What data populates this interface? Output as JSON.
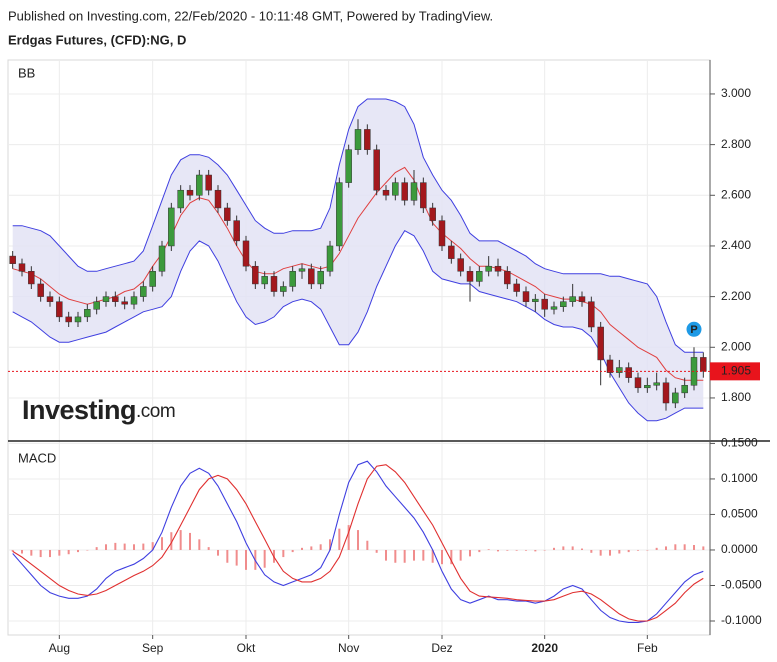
{
  "chart_data": {
    "type": "candlestick",
    "published": "Published on Investing.com, 22/Feb/2020 - 10:11:48 GMT, Powered by TradingView.",
    "title": "Erdgas Futures, (CFD):NG, D",
    "price_panel_label": "BB",
    "macd_panel_label": "MACD",
    "logo": "Investing",
    "logo_suffix": ".com",
    "marker_label": "P",
    "up_color": "#3c9a3c",
    "down_color": "#a3181d",
    "band_color": "#3f3fe0",
    "band_fill": "#e3e3f4",
    "middle_color": "#e04040",
    "macd_color": "#3f3fe0",
    "signal_color": "#e03030",
    "histogram_color": "#f08c8c",
    "last_color": "#e8141c",
    "categories": [
      null,
      null,
      null,
      null,
      null,
      "Aug",
      null,
      null,
      null,
      null,
      null,
      null,
      null,
      null,
      null,
      "Sep",
      null,
      null,
      null,
      null,
      null,
      null,
      null,
      null,
      null,
      "Okt",
      null,
      null,
      null,
      null,
      null,
      null,
      null,
      null,
      null,
      null,
      "Nov",
      null,
      null,
      null,
      null,
      null,
      null,
      null,
      null,
      null,
      "Dez",
      null,
      null,
      null,
      null,
      null,
      null,
      null,
      null,
      null,
      null,
      "2020",
      null,
      null,
      null,
      null,
      null,
      null,
      null,
      null,
      null,
      null,
      "Feb",
      null,
      null,
      null,
      null,
      null,
      null
    ],
    "ohlc": [
      [
        2.36,
        2.38,
        2.31,
        2.33
      ],
      [
        2.33,
        2.35,
        2.28,
        2.3
      ],
      [
        2.3,
        2.32,
        2.23,
        2.25
      ],
      [
        2.25,
        2.27,
        2.18,
        2.2
      ],
      [
        2.2,
        2.22,
        2.16,
        2.18
      ],
      [
        2.18,
        2.2,
        2.1,
        2.12
      ],
      [
        2.12,
        2.14,
        2.08,
        2.1
      ],
      [
        2.1,
        2.14,
        2.08,
        2.12
      ],
      [
        2.12,
        2.17,
        2.1,
        2.15
      ],
      [
        2.15,
        2.2,
        2.13,
        2.18
      ],
      [
        2.18,
        2.22,
        2.16,
        2.2
      ],
      [
        2.2,
        2.22,
        2.16,
        2.18
      ],
      [
        2.18,
        2.2,
        2.15,
        2.17
      ],
      [
        2.17,
        2.22,
        2.15,
        2.2
      ],
      [
        2.2,
        2.26,
        2.18,
        2.24
      ],
      [
        2.24,
        2.32,
        2.22,
        2.3
      ],
      [
        2.3,
        2.42,
        2.28,
        2.4
      ],
      [
        2.4,
        2.57,
        2.38,
        2.55
      ],
      [
        2.55,
        2.64,
        2.53,
        2.62
      ],
      [
        2.62,
        2.64,
        2.58,
        2.6
      ],
      [
        2.6,
        2.7,
        2.58,
        2.68
      ],
      [
        2.68,
        2.7,
        2.6,
        2.62
      ],
      [
        2.62,
        2.64,
        2.53,
        2.55
      ],
      [
        2.55,
        2.57,
        2.48,
        2.5
      ],
      [
        2.5,
        2.52,
        2.4,
        2.42
      ],
      [
        2.42,
        2.44,
        2.3,
        2.32
      ],
      [
        2.32,
        2.34,
        2.23,
        2.25
      ],
      [
        2.25,
        2.3,
        2.23,
        2.28
      ],
      [
        2.28,
        2.3,
        2.2,
        2.22
      ],
      [
        2.22,
        2.26,
        2.2,
        2.24
      ],
      [
        2.24,
        2.32,
        2.22,
        2.3
      ],
      [
        2.3,
        2.33,
        2.27,
        2.31
      ],
      [
        2.31,
        2.33,
        2.23,
        2.25
      ],
      [
        2.25,
        2.32,
        2.23,
        2.3
      ],
      [
        2.3,
        2.42,
        2.28,
        2.4
      ],
      [
        2.4,
        2.67,
        2.38,
        2.65
      ],
      [
        2.65,
        2.8,
        2.63,
        2.78
      ],
      [
        2.78,
        2.9,
        2.76,
        2.86
      ],
      [
        2.86,
        2.88,
        2.76,
        2.78
      ],
      [
        2.78,
        2.8,
        2.6,
        2.62
      ],
      [
        2.62,
        2.64,
        2.58,
        2.6
      ],
      [
        2.6,
        2.67,
        2.58,
        2.65
      ],
      [
        2.65,
        2.67,
        2.56,
        2.58
      ],
      [
        2.58,
        2.7,
        2.56,
        2.65
      ],
      [
        2.65,
        2.67,
        2.53,
        2.55
      ],
      [
        2.55,
        2.57,
        2.48,
        2.5
      ],
      [
        2.5,
        2.52,
        2.38,
        2.4
      ],
      [
        2.4,
        2.42,
        2.33,
        2.35
      ],
      [
        2.35,
        2.37,
        2.28,
        2.3
      ],
      [
        2.3,
        2.32,
        2.18,
        2.26
      ],
      [
        2.26,
        2.32,
        2.24,
        2.3
      ],
      [
        2.3,
        2.36,
        2.28,
        2.32
      ],
      [
        2.32,
        2.35,
        2.28,
        2.3
      ],
      [
        2.3,
        2.32,
        2.23,
        2.25
      ],
      [
        2.25,
        2.27,
        2.2,
        2.22
      ],
      [
        2.22,
        2.24,
        2.16,
        2.18
      ],
      [
        2.18,
        2.21,
        2.14,
        2.19
      ],
      [
        2.19,
        2.21,
        2.12,
        2.15
      ],
      [
        2.15,
        2.18,
        2.13,
        2.16
      ],
      [
        2.16,
        2.2,
        2.14,
        2.18
      ],
      [
        2.18,
        2.25,
        2.16,
        2.2
      ],
      [
        2.2,
        2.22,
        2.16,
        2.18
      ],
      [
        2.18,
        2.2,
        2.06,
        2.08
      ],
      [
        2.08,
        2.1,
        1.85,
        1.95
      ],
      [
        1.95,
        1.97,
        1.88,
        1.9
      ],
      [
        1.9,
        1.95,
        1.88,
        1.92
      ],
      [
        1.92,
        1.94,
        1.86,
        1.88
      ],
      [
        1.88,
        1.9,
        1.82,
        1.84
      ],
      [
        1.84,
        1.88,
        1.82,
        1.85
      ],
      [
        1.85,
        1.9,
        1.83,
        1.86
      ],
      [
        1.86,
        1.88,
        1.75,
        1.78
      ],
      [
        1.78,
        1.84,
        1.76,
        1.82
      ],
      [
        1.82,
        1.88,
        1.8,
        1.85
      ],
      [
        1.85,
        2.0,
        1.83,
        1.96
      ],
      [
        1.96,
        1.98,
        1.88,
        1.905
      ]
    ],
    "bb_upper": [
      2.48,
      2.48,
      2.47,
      2.46,
      2.44,
      2.4,
      2.36,
      2.32,
      2.3,
      2.3,
      2.31,
      2.32,
      2.33,
      2.34,
      2.38,
      2.48,
      2.58,
      2.68,
      2.74,
      2.76,
      2.76,
      2.75,
      2.72,
      2.68,
      2.62,
      2.56,
      2.5,
      2.47,
      2.45,
      2.45,
      2.46,
      2.46,
      2.46,
      2.47,
      2.55,
      2.72,
      2.86,
      2.95,
      2.98,
      2.98,
      2.98,
      2.97,
      2.95,
      2.88,
      2.75,
      2.68,
      2.62,
      2.58,
      2.52,
      2.45,
      2.42,
      2.42,
      2.42,
      2.4,
      2.38,
      2.36,
      2.33,
      2.31,
      2.3,
      2.29,
      2.29,
      2.29,
      2.29,
      2.29,
      2.28,
      2.28,
      2.27,
      2.26,
      2.25,
      2.2,
      2.1,
      2.01,
      1.98,
      1.98,
      1.98
    ],
    "bb_middle": [
      2.31,
      2.3,
      2.29,
      2.27,
      2.24,
      2.21,
      2.19,
      2.18,
      2.17,
      2.18,
      2.19,
      2.2,
      2.22,
      2.23,
      2.26,
      2.32,
      2.37,
      2.44,
      2.52,
      2.57,
      2.59,
      2.58,
      2.53,
      2.47,
      2.4,
      2.34,
      2.3,
      2.29,
      2.29,
      2.31,
      2.32,
      2.33,
      2.32,
      2.31,
      2.32,
      2.37,
      2.44,
      2.51,
      2.56,
      2.61,
      2.65,
      2.69,
      2.71,
      2.66,
      2.57,
      2.49,
      2.45,
      2.42,
      2.39,
      2.35,
      2.32,
      2.32,
      2.31,
      2.3,
      2.28,
      2.26,
      2.24,
      2.21,
      2.2,
      2.19,
      2.19,
      2.18,
      2.17,
      2.14,
      2.09,
      2.06,
      2.03,
      2.0,
      1.98,
      1.96,
      1.91,
      1.88,
      1.87,
      1.87,
      1.87
    ],
    "bb_lower": [
      2.14,
      2.12,
      2.1,
      2.07,
      2.04,
      2.02,
      2.02,
      2.03,
      2.04,
      2.05,
      2.06,
      2.08,
      2.1,
      2.12,
      2.14,
      2.15,
      2.16,
      2.2,
      2.3,
      2.38,
      2.42,
      2.4,
      2.34,
      2.26,
      2.18,
      2.12,
      2.09,
      2.1,
      2.12,
      2.16,
      2.18,
      2.19,
      2.18,
      2.15,
      2.08,
      2.01,
      2.01,
      2.06,
      2.14,
      2.24,
      2.32,
      2.4,
      2.46,
      2.44,
      2.38,
      2.3,
      2.27,
      2.26,
      2.25,
      2.25,
      2.22,
      2.21,
      2.2,
      2.19,
      2.18,
      2.16,
      2.14,
      2.11,
      2.09,
      2.08,
      2.08,
      2.07,
      2.04,
      1.98,
      1.9,
      1.84,
      1.78,
      1.74,
      1.71,
      1.71,
      1.72,
      1.74,
      1.76,
      1.76,
      1.76
    ],
    "macd": [
      -0.005,
      -0.02,
      -0.035,
      -0.05,
      -0.06,
      -0.065,
      -0.068,
      -0.068,
      -0.065,
      -0.055,
      -0.04,
      -0.03,
      -0.025,
      -0.02,
      -0.012,
      0.0,
      0.025,
      0.06,
      0.09,
      0.108,
      0.115,
      0.108,
      0.09,
      0.065,
      0.04,
      0.01,
      -0.015,
      -0.035,
      -0.045,
      -0.05,
      -0.045,
      -0.04,
      -0.035,
      -0.025,
      0.0,
      0.05,
      0.095,
      0.12,
      0.125,
      0.11,
      0.09,
      0.075,
      0.06,
      0.045,
      0.025,
      0.0,
      -0.03,
      -0.055,
      -0.07,
      -0.075,
      -0.07,
      -0.065,
      -0.07,
      -0.07,
      -0.072,
      -0.072,
      -0.075,
      -0.072,
      -0.065,
      -0.055,
      -0.05,
      -0.055,
      -0.07,
      -0.085,
      -0.095,
      -0.1,
      -0.102,
      -0.102,
      -0.1,
      -0.09,
      -0.075,
      -0.06,
      -0.045,
      -0.035,
      -0.03
    ],
    "signal": [
      -0.002,
      -0.01,
      -0.02,
      -0.03,
      -0.04,
      -0.05,
      -0.057,
      -0.062,
      -0.064,
      -0.062,
      -0.057,
      -0.05,
      -0.043,
      -0.036,
      -0.03,
      -0.022,
      -0.01,
      0.01,
      0.035,
      0.06,
      0.085,
      0.1,
      0.105,
      0.1,
      0.085,
      0.065,
      0.04,
      0.015,
      -0.01,
      -0.03,
      -0.04,
      -0.045,
      -0.045,
      -0.04,
      -0.03,
      -0.01,
      0.025,
      0.065,
      0.1,
      0.118,
      0.12,
      0.11,
      0.095,
      0.075,
      0.055,
      0.035,
      0.01,
      -0.015,
      -0.04,
      -0.058,
      -0.065,
      -0.066,
      -0.067,
      -0.068,
      -0.07,
      -0.071,
      -0.072,
      -0.072,
      -0.07,
      -0.065,
      -0.06,
      -0.058,
      -0.062,
      -0.07,
      -0.08,
      -0.09,
      -0.097,
      -0.1,
      -0.1,
      -0.095,
      -0.085,
      -0.075,
      -0.06,
      -0.048,
      -0.04
    ],
    "histogram": [
      -0.002,
      -0.005,
      -0.008,
      -0.01,
      -0.01,
      -0.008,
      -0.006,
      -0.003,
      0.0,
      0.004,
      0.008,
      0.01,
      0.009,
      0.008,
      0.009,
      0.011,
      0.018,
      0.025,
      0.028,
      0.024,
      0.015,
      0.004,
      -0.008,
      -0.018,
      -0.022,
      -0.028,
      -0.028,
      -0.025,
      -0.018,
      -0.01,
      -0.003,
      0.003,
      0.005,
      0.008,
      0.015,
      0.03,
      0.035,
      0.028,
      0.013,
      -0.004,
      -0.015,
      -0.018,
      -0.018,
      -0.015,
      -0.015,
      -0.018,
      -0.02,
      -0.02,
      -0.015,
      -0.009,
      -0.003,
      0.001,
      -0.002,
      -0.001,
      -0.001,
      -0.001,
      -0.002,
      0.0,
      0.003,
      0.005,
      0.005,
      0.002,
      -0.004,
      -0.008,
      -0.008,
      -0.005,
      -0.003,
      -0.001,
      0.0,
      0.003,
      0.005,
      0.008,
      0.008,
      0.007,
      0.005
    ],
    "ylim": [
      1.634,
      3.134
    ],
    "yticks": [
      {
        "value": 1.8,
        "label": "1.800"
      },
      {
        "value": 2.0,
        "label": "2.000"
      },
      {
        "value": 2.2,
        "label": "2.200"
      },
      {
        "value": 2.4,
        "label": "2.400"
      },
      {
        "value": 2.6,
        "label": "2.600"
      },
      {
        "value": 2.8,
        "label": "2.800"
      },
      {
        "value": 3.0,
        "label": "3.000"
      }
    ],
    "y2lim": [
      -0.1197,
      0.152
    ],
    "y2ticks": [
      {
        "value": -0.1,
        "label": "-0.1000"
      },
      {
        "value": -0.05,
        "label": "-0.0500"
      },
      {
        "value": 0,
        "label": "0.0000"
      },
      {
        "value": 0.05,
        "label": "0.0500"
      },
      {
        "value": 0.1,
        "label": "0.1000"
      },
      {
        "value": 0.15,
        "label": "0.1500"
      }
    ],
    "grid": true
  }
}
